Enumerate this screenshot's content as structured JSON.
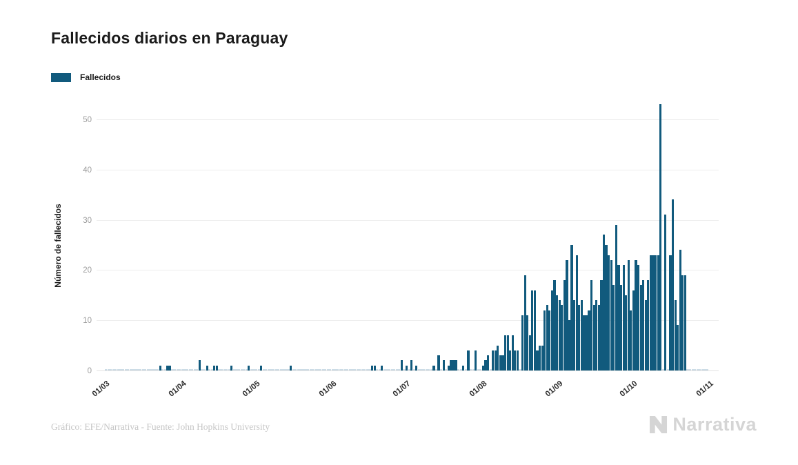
{
  "header": {
    "title": "Fallecidos diarios en Paraguay"
  },
  "legend": {
    "label": "Fallecidos",
    "swatch_color": "#115a7d"
  },
  "footer": {
    "credit": "Gráfico: EFE/Narrativa - Fuente: John Hopkins University"
  },
  "brand": {
    "name": "Narrativa",
    "icon": "narrativa-n-mark",
    "color": "#d5d5d5"
  },
  "chart_data": {
    "type": "bar",
    "title": "Fallecidos diarios en Paraguay",
    "series_name": "Fallecidos",
    "xlabel": "",
    "ylabel": "Número de fallecidos",
    "bar_color": "#115a7d",
    "zero_mark_color": "#ccdce6",
    "grid": true,
    "legend_position": "top-left",
    "ylim": [
      0,
      54.6
    ],
    "yticks": [
      0,
      10,
      20,
      30,
      40,
      50
    ],
    "x_start_date": "2020-03-01",
    "x_total_days": 245,
    "x_ticks": [
      {
        "label": "01/03",
        "day": 0
      },
      {
        "label": "01/04",
        "day": 31
      },
      {
        "label": "01/05",
        "day": 61
      },
      {
        "label": "01/06",
        "day": 92
      },
      {
        "label": "01/07",
        "day": 122
      },
      {
        "label": "01/08",
        "day": 153
      },
      {
        "label": "01/09",
        "day": 184
      },
      {
        "label": "01/10",
        "day": 214
      },
      {
        "label": "01/11",
        "day": 245
      }
    ],
    "points": [
      {
        "date": "2020-03-23",
        "day": 22,
        "value": 1
      },
      {
        "date": "2020-03-26",
        "day": 25,
        "value": 1
      },
      {
        "date": "2020-03-27",
        "day": 26,
        "value": 1
      },
      {
        "date": "2020-04-08",
        "day": 38,
        "value": 2
      },
      {
        "date": "2020-04-11",
        "day": 41,
        "value": 1
      },
      {
        "date": "2020-04-14",
        "day": 44,
        "value": 1
      },
      {
        "date": "2020-04-15",
        "day": 45,
        "value": 1
      },
      {
        "date": "2020-04-21",
        "day": 51,
        "value": 1
      },
      {
        "date": "2020-04-28",
        "day": 58,
        "value": 1
      },
      {
        "date": "2020-05-03",
        "day": 63,
        "value": 1
      },
      {
        "date": "2020-05-15",
        "day": 75,
        "value": 1
      },
      {
        "date": "2020-06-17",
        "day": 108,
        "value": 1
      },
      {
        "date": "2020-06-18",
        "day": 109,
        "value": 1
      },
      {
        "date": "2020-06-21",
        "day": 112,
        "value": 1
      },
      {
        "date": "2020-06-29",
        "day": 120,
        "value": 2
      },
      {
        "date": "2020-07-01",
        "day": 122,
        "value": 1
      },
      {
        "date": "2020-07-03",
        "day": 124,
        "value": 2
      },
      {
        "date": "2020-07-05",
        "day": 126,
        "value": 1
      },
      {
        "date": "2020-07-12",
        "day": 133,
        "value": 1
      },
      {
        "date": "2020-07-14",
        "day": 135,
        "value": 3
      },
      {
        "date": "2020-07-16",
        "day": 137,
        "value": 2
      },
      {
        "date": "2020-07-18",
        "day": 139,
        "value": 1
      },
      {
        "date": "2020-07-19",
        "day": 140,
        "value": 2
      },
      {
        "date": "2020-07-20",
        "day": 141,
        "value": 2
      },
      {
        "date": "2020-07-21",
        "day": 142,
        "value": 2
      },
      {
        "date": "2020-07-24",
        "day": 145,
        "value": 1
      },
      {
        "date": "2020-07-26",
        "day": 147,
        "value": 4
      },
      {
        "date": "2020-07-29",
        "day": 150,
        "value": 4
      },
      {
        "date": "2020-08-01",
        "day": 153,
        "value": 1
      },
      {
        "date": "2020-08-02",
        "day": 154,
        "value": 2
      },
      {
        "date": "2020-08-03",
        "day": 155,
        "value": 3
      },
      {
        "date": "2020-08-05",
        "day": 157,
        "value": 4
      },
      {
        "date": "2020-08-06",
        "day": 158,
        "value": 4
      },
      {
        "date": "2020-08-07",
        "day": 159,
        "value": 5
      },
      {
        "date": "2020-08-08",
        "day": 160,
        "value": 3
      },
      {
        "date": "2020-08-09",
        "day": 161,
        "value": 3
      },
      {
        "date": "2020-08-10",
        "day": 162,
        "value": 7
      },
      {
        "date": "2020-08-11",
        "day": 163,
        "value": 7
      },
      {
        "date": "2020-08-12",
        "day": 164,
        "value": 4
      },
      {
        "date": "2020-08-13",
        "day": 165,
        "value": 7
      },
      {
        "date": "2020-08-14",
        "day": 166,
        "value": 4
      },
      {
        "date": "2020-08-15",
        "day": 167,
        "value": 4
      },
      {
        "date": "2020-08-17",
        "day": 169,
        "value": 11
      },
      {
        "date": "2020-08-18",
        "day": 170,
        "value": 19
      },
      {
        "date": "2020-08-19",
        "day": 171,
        "value": 11
      },
      {
        "date": "2020-08-20",
        "day": 172,
        "value": 7
      },
      {
        "date": "2020-08-21",
        "day": 173,
        "value": 16
      },
      {
        "date": "2020-08-22",
        "day": 174,
        "value": 16
      },
      {
        "date": "2020-08-23",
        "day": 175,
        "value": 4
      },
      {
        "date": "2020-08-24",
        "day": 176,
        "value": 5
      },
      {
        "date": "2020-08-25",
        "day": 177,
        "value": 5
      },
      {
        "date": "2020-08-26",
        "day": 178,
        "value": 12
      },
      {
        "date": "2020-08-27",
        "day": 179,
        "value": 13
      },
      {
        "date": "2020-08-28",
        "day": 180,
        "value": 12
      },
      {
        "date": "2020-08-29",
        "day": 181,
        "value": 16
      },
      {
        "date": "2020-08-30",
        "day": 182,
        "value": 18
      },
      {
        "date": "2020-08-31",
        "day": 183,
        "value": 15
      },
      {
        "date": "2020-09-01",
        "day": 184,
        "value": 14
      },
      {
        "date": "2020-09-02",
        "day": 185,
        "value": 13
      },
      {
        "date": "2020-09-03",
        "day": 186,
        "value": 18
      },
      {
        "date": "2020-09-04",
        "day": 187,
        "value": 22
      },
      {
        "date": "2020-09-05",
        "day": 188,
        "value": 10
      },
      {
        "date": "2020-09-06",
        "day": 189,
        "value": 25
      },
      {
        "date": "2020-09-07",
        "day": 190,
        "value": 14
      },
      {
        "date": "2020-09-08",
        "day": 191,
        "value": 23
      },
      {
        "date": "2020-09-09",
        "day": 192,
        "value": 13
      },
      {
        "date": "2020-09-10",
        "day": 193,
        "value": 14
      },
      {
        "date": "2020-09-11",
        "day": 194,
        "value": 11
      },
      {
        "date": "2020-09-12",
        "day": 195,
        "value": 11
      },
      {
        "date": "2020-09-13",
        "day": 196,
        "value": 12
      },
      {
        "date": "2020-09-14",
        "day": 197,
        "value": 18
      },
      {
        "date": "2020-09-15",
        "day": 198,
        "value": 13
      },
      {
        "date": "2020-09-16",
        "day": 199,
        "value": 14
      },
      {
        "date": "2020-09-17",
        "day": 200,
        "value": 13
      },
      {
        "date": "2020-09-18",
        "day": 201,
        "value": 18
      },
      {
        "date": "2020-09-19",
        "day": 202,
        "value": 27
      },
      {
        "date": "2020-09-20",
        "day": 203,
        "value": 25
      },
      {
        "date": "2020-09-21",
        "day": 204,
        "value": 23
      },
      {
        "date": "2020-09-22",
        "day": 205,
        "value": 22
      },
      {
        "date": "2020-09-23",
        "day": 206,
        "value": 17
      },
      {
        "date": "2020-09-24",
        "day": 207,
        "value": 29
      },
      {
        "date": "2020-09-25",
        "day": 208,
        "value": 21
      },
      {
        "date": "2020-09-26",
        "day": 209,
        "value": 17
      },
      {
        "date": "2020-09-27",
        "day": 210,
        "value": 21
      },
      {
        "date": "2020-09-28",
        "day": 211,
        "value": 15
      },
      {
        "date": "2020-09-29",
        "day": 212,
        "value": 22
      },
      {
        "date": "2020-09-30",
        "day": 213,
        "value": 12
      },
      {
        "date": "2020-10-01",
        "day": 214,
        "value": 16
      },
      {
        "date": "2020-10-02",
        "day": 215,
        "value": 22
      },
      {
        "date": "2020-10-03",
        "day": 216,
        "value": 21
      },
      {
        "date": "2020-10-04",
        "day": 217,
        "value": 17
      },
      {
        "date": "2020-10-05",
        "day": 218,
        "value": 18
      },
      {
        "date": "2020-10-06",
        "day": 219,
        "value": 14
      },
      {
        "date": "2020-10-07",
        "day": 220,
        "value": 18
      },
      {
        "date": "2020-10-08",
        "day": 221,
        "value": 23
      },
      {
        "date": "2020-10-09",
        "day": 222,
        "value": 23
      },
      {
        "date": "2020-10-10",
        "day": 223,
        "value": 23
      },
      {
        "date": "2020-10-11",
        "day": 224,
        "value": 23
      },
      {
        "date": "2020-10-12",
        "day": 225,
        "value": 53
      },
      {
        "date": "2020-10-14",
        "day": 227,
        "value": 31
      },
      {
        "date": "2020-10-16",
        "day": 229,
        "value": 23
      },
      {
        "date": "2020-10-17",
        "day": 230,
        "value": 34
      },
      {
        "date": "2020-10-18",
        "day": 231,
        "value": 14
      },
      {
        "date": "2020-10-19",
        "day": 232,
        "value": 9
      },
      {
        "date": "2020-10-20",
        "day": 233,
        "value": 24
      },
      {
        "date": "2020-10-21",
        "day": 234,
        "value": 19
      },
      {
        "date": "2020-10-22",
        "day": 235,
        "value": 19
      }
    ]
  }
}
